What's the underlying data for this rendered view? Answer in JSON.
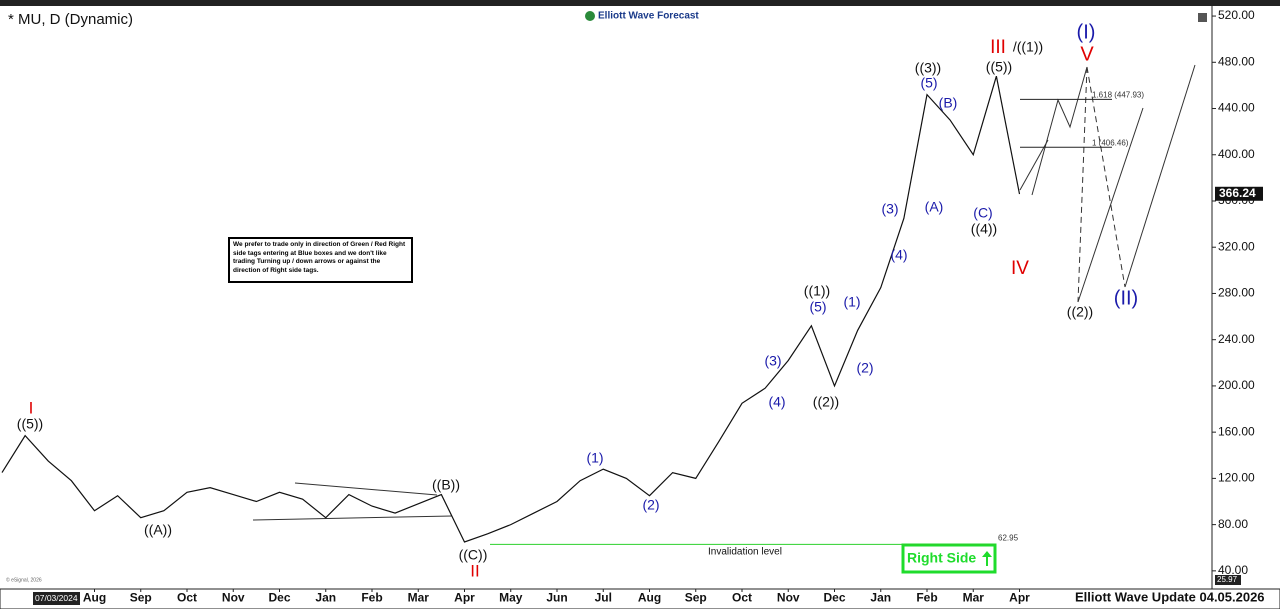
{
  "chart_data": {
    "type": "line",
    "title": "* MU, D (Dynamic)",
    "brand": "Elliott Wave Forecast",
    "footer": "Elliott Wave Update 04.05.2026",
    "cursor_date": "07/03/2024",
    "copyright": "© eSignal, 2026",
    "note": "We prefer to trade only in direction of Green / Red Right side tags entering at Blue boxes and we don't like trading Turning up / down arrows or against the direction of Right side tags.",
    "right_side_tag": "Right Side",
    "invalidation_text": "Invalidation level",
    "invalidation": {
      "value": 62.95,
      "label": "62.95"
    },
    "last_price": {
      "value": 366.24,
      "label": "366.24"
    },
    "axis_min_label": "25.97",
    "fib_levels": [
      {
        "value": 447.93,
        "label": "1.618 (447.93)"
      },
      {
        "value": 406.46,
        "label": "1 (406.46)"
      }
    ],
    "categories": [
      null,
      null,
      null,
      null,
      "Aug",
      null,
      "Sep",
      null,
      "Oct",
      null,
      "Nov",
      null,
      "Dec",
      null,
      "Jan",
      null,
      "Feb",
      null,
      "Mar",
      null,
      "Apr",
      null,
      "May",
      null,
      "Jun",
      null,
      "Jul",
      null,
      "Aug",
      null,
      "Sep",
      null,
      "Oct",
      null,
      "Nov",
      null,
      "Dec",
      null,
      "Jan",
      null,
      "Feb",
      null,
      "Mar",
      null,
      "Apr"
    ],
    "series": [
      {
        "name": "MU",
        "color": "#111111",
        "values": [
          125,
          157,
          135,
          118,
          92,
          105,
          86,
          92,
          108,
          112,
          106,
          100,
          108,
          102,
          86,
          106,
          96,
          90,
          98,
          106,
          65,
          72,
          80,
          90,
          100,
          118,
          128,
          120,
          105,
          125,
          120,
          152,
          185,
          198,
          222,
          252,
          200,
          248,
          285,
          345,
          452,
          430,
          400,
          468,
          366
        ]
      }
    ],
    "ylim": [
      24.3,
      528.7
    ],
    "yticks": [
      {
        "value": 40,
        "label": "40.00"
      },
      {
        "value": 80,
        "label": "80.00"
      },
      {
        "value": 120,
        "label": "120.00"
      },
      {
        "value": 160,
        "label": "160.00"
      },
      {
        "value": 200,
        "label": "200.00"
      },
      {
        "value": 240,
        "label": "240.00"
      },
      {
        "value": 280,
        "label": "280.00"
      },
      {
        "value": 320,
        "label": "320.00"
      },
      {
        "value": 360,
        "label": "360.00"
      },
      {
        "value": 400,
        "label": "400.00"
      },
      {
        "value": 440,
        "label": "440.00"
      },
      {
        "value": 480,
        "label": "480.00"
      },
      {
        "value": 520,
        "label": "520.00"
      }
    ],
    "annotations": [
      {
        "text": "I",
        "color": "#e00000"
      },
      {
        "text": "((5))",
        "color": "#111111"
      },
      {
        "text": "((A))",
        "color": "#111111"
      },
      {
        "text": "((B))",
        "color": "#111111"
      },
      {
        "text": "((C))",
        "color": "#111111"
      },
      {
        "text": "II",
        "color": "#e00000"
      },
      {
        "text": "(1)",
        "color": "#1a1aaa"
      },
      {
        "text": "(2)",
        "color": "#1a1aaa"
      },
      {
        "text": "(3)",
        "color": "#1a1aaa"
      },
      {
        "text": "(4)",
        "color": "#1a1aaa"
      },
      {
        "text": "((1))",
        "color": "#111111"
      },
      {
        "text": "(5)",
        "color": "#1a1aaa"
      },
      {
        "text": "((2))",
        "color": "#111111"
      },
      {
        "text": "(1)",
        "color": "#1a1aaa"
      },
      {
        "text": "(2)",
        "color": "#1a1aaa"
      },
      {
        "text": "(3)",
        "color": "#1a1aaa"
      },
      {
        "text": "(4)",
        "color": "#1a1aaa"
      },
      {
        "text": "((3))",
        "color": "#111111"
      },
      {
        "text": "(5)",
        "color": "#1a1aaa"
      },
      {
        "text": "(B)",
        "color": "#1a1aaa"
      },
      {
        "text": "(A)",
        "color": "#1a1aaa"
      },
      {
        "text": "(C)",
        "color": "#1a1aaa"
      },
      {
        "text": "((4))",
        "color": "#111111"
      },
      {
        "text": "III",
        "color": "#e00000"
      },
      {
        "text": "/((1))",
        "color": "#111111"
      },
      {
        "text": "((5))",
        "color": "#111111"
      },
      {
        "text": "IV",
        "color": "#e00000"
      },
      {
        "text": "(I)",
        "color": "#1a1aaa"
      },
      {
        "text": "V",
        "color": "#e00000"
      },
      {
        "text": "((2))",
        "color": "#111111"
      },
      {
        "text": "(II)",
        "color": "#1a1aaa"
      }
    ]
  }
}
